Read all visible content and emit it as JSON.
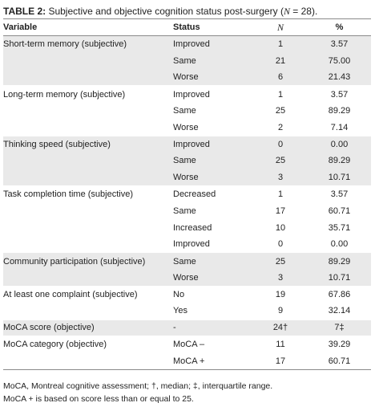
{
  "caption": {
    "label": "TABLE 2:",
    "text": " Subjective and objective cognition status post-surgery (",
    "n_symbol": "N",
    "n_value": " = 28)."
  },
  "headers": {
    "variable": "Variable",
    "status": "Status",
    "n": "N",
    "percent": "%"
  },
  "rows": [
    {
      "variable": "Short-term memory (subjective)",
      "status": "Improved",
      "n": "1",
      "percent": "3.57",
      "shade": true,
      "gstart": true
    },
    {
      "variable": "",
      "status": "Same",
      "n": "21",
      "percent": "75.00",
      "shade": true
    },
    {
      "variable": "",
      "status": "Worse",
      "n": "6",
      "percent": "21.43",
      "shade": true
    },
    {
      "variable": "Long-term memory (subjective)",
      "status": "Improved",
      "n": "1",
      "percent": "3.57",
      "shade": false,
      "gstart": true
    },
    {
      "variable": "",
      "status": "Same",
      "n": "25",
      "percent": "89.29",
      "shade": false
    },
    {
      "variable": "",
      "status": "Worse",
      "n": "2",
      "percent": "7.14",
      "shade": false
    },
    {
      "variable": "Thinking speed (subjective)",
      "status": "Improved",
      "n": "0",
      "percent": "0.00",
      "shade": true,
      "gstart": true
    },
    {
      "variable": "",
      "status": "Same",
      "n": "25",
      "percent": "89.29",
      "shade": true
    },
    {
      "variable": "",
      "status": "Worse",
      "n": "3",
      "percent": "10.71",
      "shade": true
    },
    {
      "variable": "Task completion time (subjective)",
      "status": "Decreased",
      "n": "1",
      "percent": "3.57",
      "shade": false,
      "gstart": true
    },
    {
      "variable": "",
      "status": "Same",
      "n": "17",
      "percent": "60.71",
      "shade": false
    },
    {
      "variable": "",
      "status": "Increased",
      "n": "10",
      "percent": "35.71",
      "shade": false
    },
    {
      "variable": "",
      "status": "Improved",
      "n": "0",
      "percent": "0.00",
      "shade": false
    },
    {
      "variable": "Community participation (subjective)",
      "status": "Same",
      "n": "25",
      "percent": "89.29",
      "shade": true,
      "gstart": true
    },
    {
      "variable": "",
      "status": "Worse",
      "n": "3",
      "percent": "10.71",
      "shade": true
    },
    {
      "variable": "At least one complaint (subjective)",
      "status": "No",
      "n": "19",
      "percent": "67.86",
      "shade": false,
      "gstart": true
    },
    {
      "variable": "",
      "status": "Yes",
      "n": "9",
      "percent": "32.14",
      "shade": false
    },
    {
      "variable": "MoCA score (objective)",
      "status": "-",
      "n": "24†",
      "percent": "7‡",
      "shade": true,
      "gstart": true
    },
    {
      "variable": "MoCA category (objective)",
      "status": "MoCA –",
      "n": "11",
      "percent": "39.29",
      "shade": false,
      "gstart": true
    },
    {
      "variable": "",
      "status": "MoCA +",
      "n": "17",
      "percent": "60.71",
      "shade": false
    }
  ],
  "notes": [
    "MoCA, Montreal cognitive assessment; †, median; ‡, interquartile range.",
    "MoCA + is based on score less than or equal to 25."
  ]
}
